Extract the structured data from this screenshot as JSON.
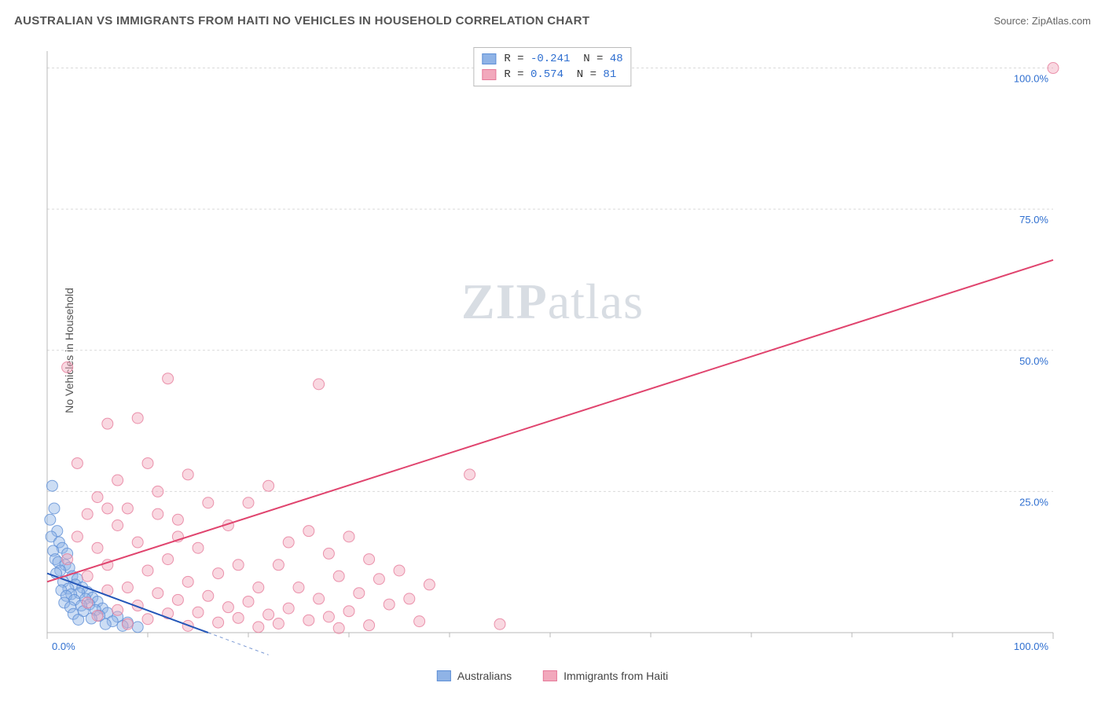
{
  "title": "AUSTRALIAN VS IMMIGRANTS FROM HAITI NO VEHICLES IN HOUSEHOLD CORRELATION CHART",
  "source_label": "Source: ZipAtlas.com",
  "ylabel": "No Vehicles in Household",
  "watermark_1": "ZIP",
  "watermark_2": "atlas",
  "chart": {
    "type": "scatter",
    "background_color": "#ffffff",
    "grid_color": "#d9d9d9",
    "grid_dash": "3,3",
    "axis_color": "#b8b8b8",
    "tick_color": "#b8b8b8",
    "tick_label_color": "#2f6fd0",
    "tick_fontsize": 13,
    "xlim": [
      0,
      100
    ],
    "ylim": [
      0,
      103
    ],
    "x_ticks_major": [
      0,
      100
    ],
    "x_ticks_minor": [
      10,
      20,
      30,
      40,
      50,
      60,
      70,
      80,
      90
    ],
    "y_ticks": [
      0,
      25,
      50,
      75,
      100
    ],
    "y_tick_labels": [
      "0.0%",
      "25.0%",
      "50.0%",
      "75.0%",
      "100.0%"
    ],
    "x_tick_labels": [
      "0.0%",
      "100.0%"
    ],
    "marker_radius": 7,
    "marker_opacity": 0.45,
    "series": [
      {
        "name": "Australians",
        "fill": "#8fb3e6",
        "stroke": "#5e8fd6",
        "r_value": "-0.241",
        "n_value": "48",
        "trend": {
          "x1": 0,
          "y1": 10.5,
          "x2": 16,
          "y2": 0,
          "color": "#2456b8",
          "width": 2,
          "dash_ext": {
            "x1": 0,
            "y1": 10.5,
            "x2": 16,
            "y2": 0
          }
        },
        "points": [
          [
            0.5,
            26
          ],
          [
            0.7,
            22
          ],
          [
            0.3,
            20
          ],
          [
            1,
            18
          ],
          [
            0.4,
            17
          ],
          [
            1.2,
            16
          ],
          [
            1.5,
            15
          ],
          [
            0.6,
            14.5
          ],
          [
            2,
            14
          ],
          [
            0.8,
            13
          ],
          [
            1.1,
            12.5
          ],
          [
            1.8,
            12
          ],
          [
            2.2,
            11.5
          ],
          [
            1.3,
            11
          ],
          [
            0.9,
            10.5
          ],
          [
            2.5,
            10
          ],
          [
            3,
            9.5
          ],
          [
            1.6,
            9
          ],
          [
            2.8,
            8.5
          ],
          [
            3.5,
            8
          ],
          [
            2.1,
            7.8
          ],
          [
            1.4,
            7.5
          ],
          [
            4,
            7.2
          ],
          [
            3.2,
            7
          ],
          [
            2.4,
            6.8
          ],
          [
            1.9,
            6.5
          ],
          [
            4.5,
            6.2
          ],
          [
            3.8,
            6
          ],
          [
            2.7,
            5.8
          ],
          [
            5,
            5.5
          ],
          [
            1.7,
            5.3
          ],
          [
            4.2,
            5
          ],
          [
            3.4,
            4.8
          ],
          [
            2.3,
            4.5
          ],
          [
            5.5,
            4.3
          ],
          [
            4.8,
            4
          ],
          [
            3.6,
            3.8
          ],
          [
            6,
            3.5
          ],
          [
            2.6,
            3.3
          ],
          [
            5.2,
            3
          ],
          [
            7,
            2.8
          ],
          [
            4.4,
            2.5
          ],
          [
            3.1,
            2.3
          ],
          [
            6.5,
            2
          ],
          [
            8,
            1.8
          ],
          [
            5.8,
            1.5
          ],
          [
            7.5,
            1.2
          ],
          [
            9,
            1
          ]
        ]
      },
      {
        "name": "Immigrants from Haiti",
        "fill": "#f2a8bc",
        "stroke": "#e67a9a",
        "r_value": "0.574",
        "n_value": "81",
        "trend": {
          "x1": 0,
          "y1": 9,
          "x2": 100,
          "y2": 66,
          "color": "#e0446e",
          "width": 2
        },
        "points": [
          [
            100,
            100
          ],
          [
            2,
            47
          ],
          [
            12,
            45
          ],
          [
            27,
            44
          ],
          [
            42,
            28
          ],
          [
            9,
            38
          ],
          [
            10,
            30
          ],
          [
            6,
            37
          ],
          [
            3,
            30
          ],
          [
            14,
            28
          ],
          [
            22,
            26
          ],
          [
            16,
            23
          ],
          [
            20,
            23
          ],
          [
            6,
            22
          ],
          [
            8,
            22
          ],
          [
            11,
            21
          ],
          [
            4,
            21
          ],
          [
            13,
            20
          ],
          [
            18,
            19
          ],
          [
            7,
            19
          ],
          [
            26,
            18
          ],
          [
            30,
            17
          ],
          [
            24,
            16
          ],
          [
            9,
            16
          ],
          [
            15,
            15
          ],
          [
            5,
            15
          ],
          [
            28,
            14
          ],
          [
            32,
            13
          ],
          [
            12,
            13
          ],
          [
            19,
            12
          ],
          [
            23,
            12
          ],
          [
            35,
            11
          ],
          [
            10,
            11
          ],
          [
            17,
            10.5
          ],
          [
            29,
            10
          ],
          [
            33,
            9.5
          ],
          [
            14,
            9
          ],
          [
            38,
            8.5
          ],
          [
            21,
            8
          ],
          [
            25,
            8
          ],
          [
            8,
            8
          ],
          [
            6,
            7.5
          ],
          [
            31,
            7
          ],
          [
            11,
            7
          ],
          [
            16,
            6.5
          ],
          [
            36,
            6
          ],
          [
            27,
            6
          ],
          [
            13,
            5.8
          ],
          [
            20,
            5.5
          ],
          [
            4,
            5.3
          ],
          [
            34,
            5
          ],
          [
            9,
            4.8
          ],
          [
            18,
            4.5
          ],
          [
            24,
            4.3
          ],
          [
            7,
            4
          ],
          [
            30,
            3.8
          ],
          [
            15,
            3.6
          ],
          [
            12,
            3.4
          ],
          [
            22,
            3.2
          ],
          [
            5,
            3
          ],
          [
            28,
            2.8
          ],
          [
            19,
            2.6
          ],
          [
            10,
            2.4
          ],
          [
            26,
            2.2
          ],
          [
            37,
            2
          ],
          [
            17,
            1.8
          ],
          [
            23,
            1.6
          ],
          [
            8,
            1.5
          ],
          [
            32,
            1.3
          ],
          [
            14,
            1.2
          ],
          [
            21,
            1
          ],
          [
            29,
            0.8
          ],
          [
            45,
            1.5
          ],
          [
            3,
            17
          ],
          [
            2,
            13
          ],
          [
            4,
            10
          ],
          [
            6,
            12
          ],
          [
            11,
            25
          ],
          [
            7,
            27
          ],
          [
            5,
            24
          ],
          [
            13,
            17
          ]
        ]
      }
    ]
  },
  "legend_bottom": [
    {
      "label": "Australians",
      "fill": "#8fb3e6",
      "stroke": "#5e8fd6"
    },
    {
      "label": "Immigrants from Haiti",
      "fill": "#f2a8bc",
      "stroke": "#e67a9a"
    }
  ]
}
